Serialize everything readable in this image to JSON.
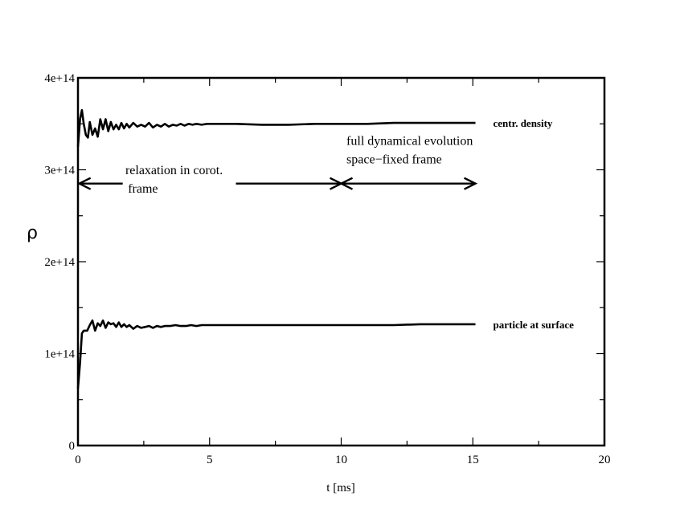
{
  "chart_data": {
    "type": "line",
    "title": "",
    "xlabel": "t [ms]",
    "ylabel": "ρ",
    "xlim": [
      0,
      20
    ],
    "ylim": [
      0,
      400000000000000.0
    ],
    "grid": false,
    "x_ticks": [
      0,
      5,
      10,
      15,
      20
    ],
    "x_tick_labels": [
      "0",
      "5",
      "10",
      "15",
      "20"
    ],
    "y_ticks": [
      0,
      100000000000000.0,
      200000000000000.0,
      300000000000000.0,
      400000000000000.0
    ],
    "y_tick_labels": [
      "0",
      "1e+14",
      "2e+14",
      "3e+14",
      "4e+14"
    ],
    "series": [
      {
        "name": "centr. density",
        "x": [
          0,
          0.08,
          0.15,
          0.22,
          0.3,
          0.38,
          0.45,
          0.55,
          0.65,
          0.75,
          0.85,
          0.95,
          1.05,
          1.15,
          1.25,
          1.35,
          1.45,
          1.55,
          1.65,
          1.75,
          1.85,
          1.95,
          2.1,
          2.25,
          2.4,
          2.55,
          2.7,
          2.85,
          3.0,
          3.15,
          3.3,
          3.45,
          3.6,
          3.75,
          3.9,
          4.05,
          4.2,
          4.35,
          4.5,
          4.7,
          4.9,
          5.2,
          6,
          7,
          8,
          9,
          10,
          11,
          12,
          13,
          14,
          15.1
        ],
        "y": [
          325000000000000.0,
          355000000000000.0,
          365000000000000.0,
          350000000000000.0,
          338000000000000.0,
          335000000000000.0,
          352000000000000.0,
          338000000000000.0,
          345000000000000.0,
          336000000000000.0,
          355000000000000.0,
          344000000000000.0,
          355000000000000.0,
          342000000000000.0,
          352000000000000.0,
          344000000000000.0,
          349000000000000.0,
          344000000000000.0,
          351000000000000.0,
          345000000000000.0,
          350000000000000.0,
          346000000000000.0,
          351000000000000.0,
          347000000000000.0,
          349000000000000.0,
          347000000000000.0,
          351000000000000.0,
          346000000000000.0,
          349000000000000.0,
          347000000000000.0,
          350000000000000.0,
          347000000000000.0,
          349000000000000.0,
          348000000000000.0,
          350000000000000.0,
          348000000000000.0,
          350000000000000.0,
          349000000000000.0,
          350000000000000.0,
          349000000000000.0,
          350000000000000.0,
          350000000000000.0,
          350000000000000.0,
          349000000000000.0,
          349000000000000.0,
          350000000000000.0,
          350000000000000.0,
          350000000000000.0,
          351000000000000.0,
          351000000000000.0,
          351000000000000.0,
          351000000000000.0
        ]
      },
      {
        "name": "particle at surface",
        "x": [
          0,
          0.08,
          0.15,
          0.22,
          0.35,
          0.45,
          0.55,
          0.65,
          0.75,
          0.85,
          0.95,
          1.05,
          1.15,
          1.25,
          1.35,
          1.45,
          1.55,
          1.65,
          1.75,
          1.85,
          1.95,
          2.1,
          2.25,
          2.4,
          2.55,
          2.7,
          2.85,
          3.0,
          3.15,
          3.3,
          3.5,
          3.7,
          3.9,
          4.1,
          4.3,
          4.5,
          4.7,
          5,
          6,
          7,
          8,
          9,
          10,
          11,
          12,
          13,
          14,
          15.1
        ],
        "y": [
          62000000000000.0,
          90000000000000.0,
          122000000000000.0,
          125000000000000.0,
          125000000000000.0,
          131000000000000.0,
          136000000000000.0,
          125000000000000.0,
          133000000000000.0,
          130000000000000.0,
          136000000000000.0,
          128000000000000.0,
          134000000000000.0,
          132000000000000.0,
          133000000000000.0,
          129000000000000.0,
          134000000000000.0,
          129000000000000.0,
          132000000000000.0,
          129000000000000.0,
          131000000000000.0,
          127000000000000.0,
          130000000000000.0,
          128000000000000.0,
          129000000000000.0,
          130000000000000.0,
          128000000000000.0,
          130000000000000.0,
          129000000000000.0,
          130000000000000.0,
          130000000000000.0,
          131000000000000.0,
          130000000000000.0,
          130000000000000.0,
          131000000000000.0,
          130000000000000.0,
          131000000000000.0,
          131000000000000.0,
          131000000000000.0,
          131000000000000.0,
          131000000000000.0,
          131000000000000.0,
          131000000000000.0,
          131000000000000.0,
          131000000000000.0,
          132000000000000.0,
          132000000000000.0,
          132000000000000.0
        ]
      }
    ],
    "annotations": [
      {
        "text": "relaxation in corot.",
        "x": 1.8,
        "y": 295000000000000.0
      },
      {
        "text": "frame",
        "x": 1.9,
        "y": 275000000000000.0
      },
      {
        "text": "full dynamical evolution",
        "x": 10.2,
        "y": 327000000000000.0
      },
      {
        "text": "space−fixed frame",
        "x": 10.2,
        "y": 307000000000000.0
      }
    ],
    "arrows": [
      {
        "from": 1.7,
        "to": 0.05,
        "y": 285000000000000.0
      },
      {
        "from": 6.0,
        "to": 10.0,
        "y": 285000000000000.0
      },
      {
        "from": 10.0,
        "to": 15.1,
        "y": 285000000000000.0,
        "double": true
      }
    ]
  }
}
